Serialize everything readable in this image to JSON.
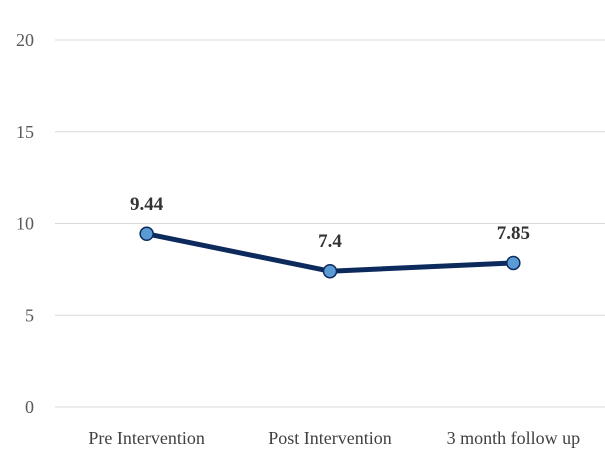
{
  "chart_data": {
    "type": "line",
    "title": "",
    "xlabel": "",
    "ylabel": "",
    "categories": [
      "Pre Intervention",
      "Post Intervention",
      "3 month follow up"
    ],
    "series": [
      {
        "values": [
          9.44,
          7.4,
          7.85
        ],
        "data_labels": [
          "9.44",
          "7.4",
          "7.85"
        ]
      }
    ],
    "ylim": [
      0,
      20
    ],
    "yticks": [
      0,
      5,
      10,
      15,
      20
    ],
    "grid": true,
    "legend": "none",
    "colors": {
      "line": "#0d2a5c",
      "marker_fill": "#5b9bd5",
      "marker_edge": "#0d2a5c",
      "grid": "#d9d9d9"
    }
  }
}
